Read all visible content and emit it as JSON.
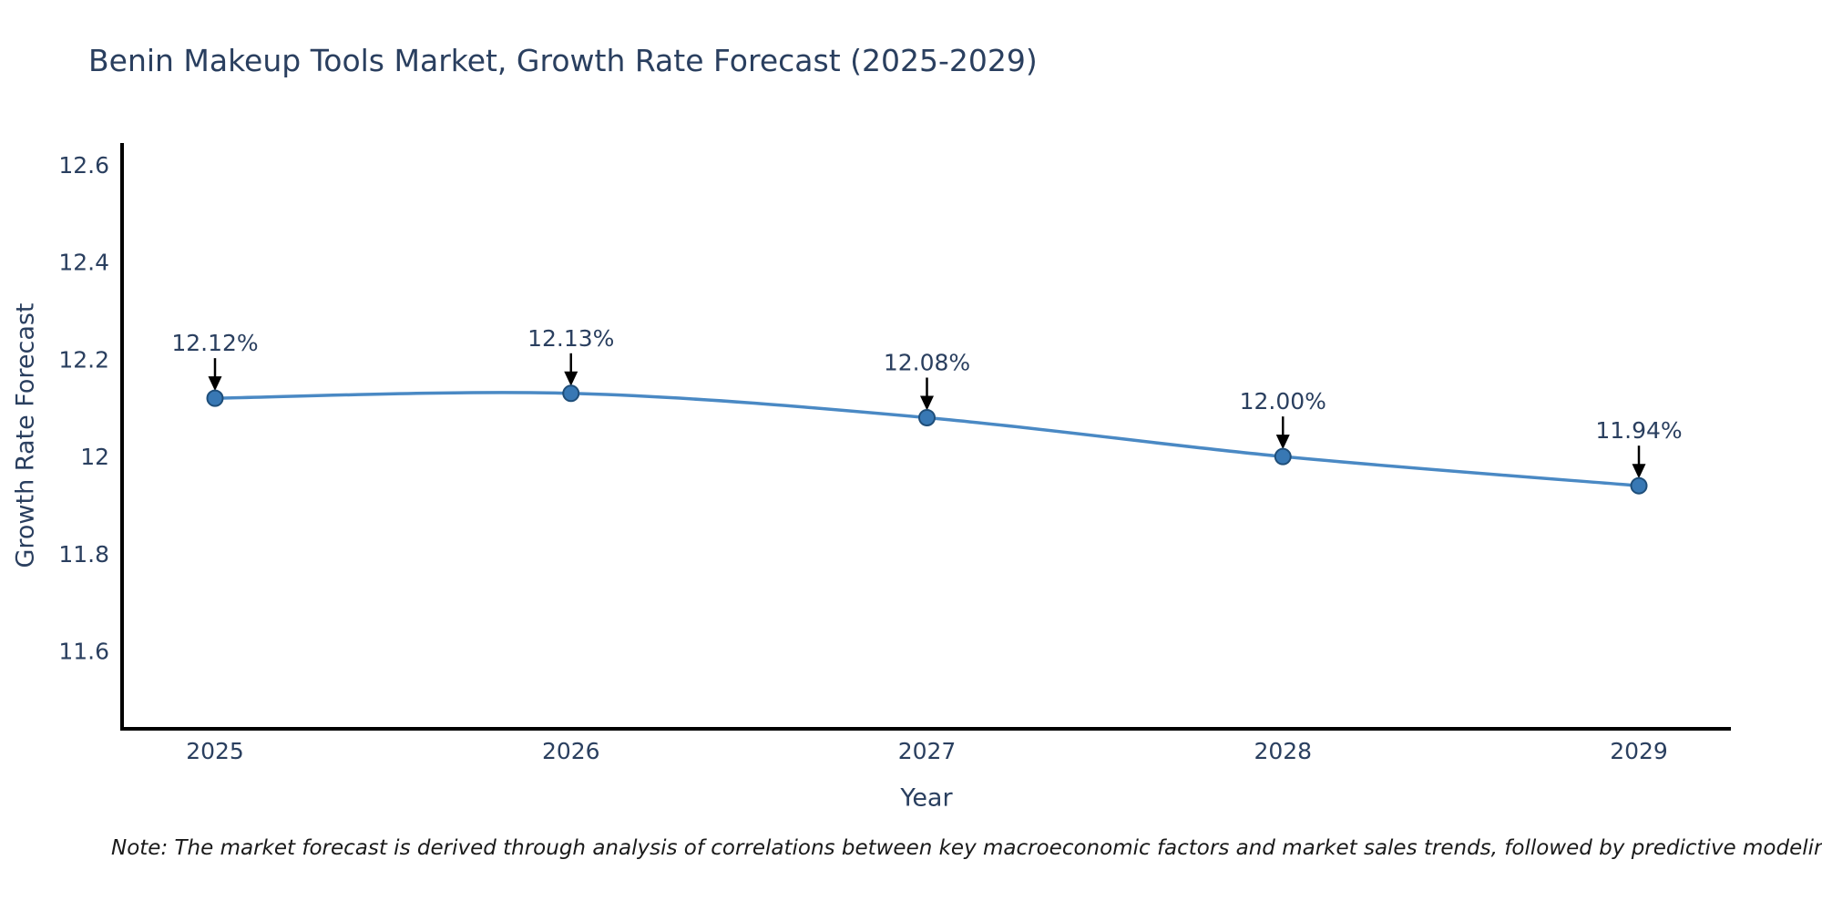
{
  "title": "Benin Makeup Tools Market, Growth Rate Forecast (2025-2029)",
  "note": "Note: The market forecast is derived through analysis of correlations between key macroeconomic factors and market sales trends, followed by predictive modeling to project future sal",
  "chart_data": {
    "type": "line",
    "title": "Benin Makeup Tools Market, Growth Rate Forecast (2025-2029)",
    "xlabel": "Year",
    "ylabel": "Growth Rate Forecast",
    "x": [
      2025,
      2026,
      2027,
      2028,
      2029
    ],
    "series": [
      {
        "name": "Growth Rate Forecast",
        "values": [
          12.12,
          12.13,
          12.08,
          12.0,
          11.94
        ]
      }
    ],
    "point_labels": [
      "12.12%",
      "12.13%",
      "12.08%",
      "12.00%",
      "11.94%"
    ],
    "x_tick_labels": [
      "2025",
      "2026",
      "2027",
      "2028",
      "2029"
    ],
    "y_tick_labels": [
      "11.6",
      "11.8",
      "12",
      "12.2",
      "12.4",
      "12.6"
    ],
    "y_tick_values": [
      11.6,
      11.8,
      12.0,
      12.2,
      12.4,
      12.6
    ],
    "ylim": [
      11.44,
      12.645
    ],
    "line_shape": "spline",
    "grid": false,
    "legend_position": "none",
    "colors": {
      "line": "#4a89c4",
      "marker_fill": "#3878b4",
      "marker_edge": "#1f4e79",
      "axis": "#000000",
      "arrow": "#000000",
      "text": "#2a3f5f",
      "note_text": "#1a1a1a",
      "background": "#ffffff"
    }
  }
}
